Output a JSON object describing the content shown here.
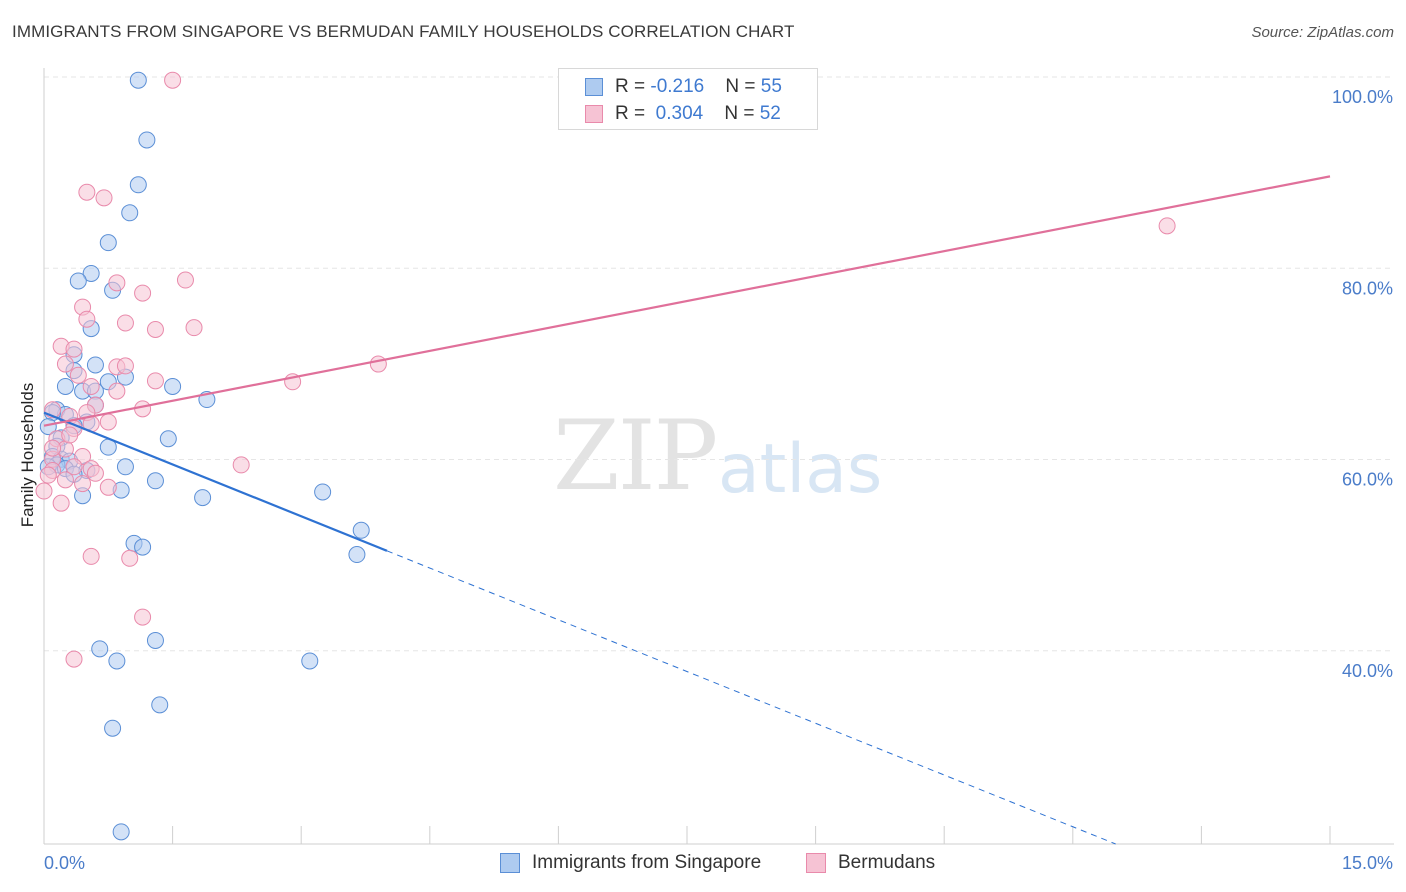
{
  "title": "IMMIGRANTS FROM SINGAPORE VS BERMUDAN FAMILY HOUSEHOLDS CORRELATION CHART",
  "source": "Source: ZipAtlas.com",
  "watermark": {
    "zip": "ZIP",
    "atlas": "atlas"
  },
  "legend": {
    "row1": {
      "r_label": "R = ",
      "r_value": "-0.216",
      "n_label": "N = ",
      "n_value": "55"
    },
    "row2": {
      "r_label": "R = ",
      "r_value": "0.304",
      "n_label": "N = ",
      "n_value": "52"
    }
  },
  "bottom_legend": {
    "series1": "Immigrants from Singapore",
    "series2": "Bermudans"
  },
  "colors": {
    "blue_fill": "#aecbf0",
    "blue_stroke": "#5b8fd6",
    "blue_line": "#2e72d2",
    "pink_fill": "#f6c3d4",
    "pink_stroke": "#e98aab",
    "pink_line": "#e0709a",
    "tick_text": "#4a7cc9",
    "grid": "#e6e6e6"
  },
  "chart_data": {
    "type": "scatter",
    "title": "IMMIGRANTS FROM SINGAPORE VS BERMUDAN FAMILY HOUSEHOLDS CORRELATION CHART",
    "xlabel": "",
    "ylabel": "Family Households",
    "xlim": [
      0,
      15
    ],
    "ylim": [
      20,
      100
    ],
    "x_tick_labels": [
      "0.0%",
      "15.0%"
    ],
    "y_ticks": [
      40,
      60,
      80,
      100
    ],
    "y_tick_labels": [
      "40.0%",
      "60.0%",
      "80.0%",
      "100.0%"
    ],
    "series": [
      {
        "name": "Immigrants from Singapore",
        "r": -0.216,
        "n": 55,
        "trend": {
          "x0": 0,
          "y0": 66.2,
          "x1": 4.0,
          "y1": 51.4,
          "dashed_to_x": 12.5,
          "dashed_to_y": 20
        },
        "points": [
          [
            1.1,
            101.8
          ],
          [
            1.2,
            95.4
          ],
          [
            1.1,
            90.6
          ],
          [
            1.0,
            87.6
          ],
          [
            0.75,
            84.4
          ],
          [
            0.55,
            81.1
          ],
          [
            0.4,
            80.3
          ],
          [
            0.8,
            79.3
          ],
          [
            0.55,
            75.2
          ],
          [
            0.35,
            72.4
          ],
          [
            0.6,
            71.3
          ],
          [
            0.35,
            70.7
          ],
          [
            0.95,
            70.0
          ],
          [
            0.75,
            69.5
          ],
          [
            0.25,
            69.0
          ],
          [
            0.45,
            68.5
          ],
          [
            1.5,
            69.0
          ],
          [
            0.6,
            68.5
          ],
          [
            1.9,
            67.6
          ],
          [
            0.6,
            67.0
          ],
          [
            0.15,
            66.5
          ],
          [
            0.25,
            66.0
          ],
          [
            0.1,
            66.2
          ],
          [
            0.5,
            65.2
          ],
          [
            0.05,
            64.7
          ],
          [
            0.35,
            64.8
          ],
          [
            0.2,
            63.5
          ],
          [
            0.15,
            62.6
          ],
          [
            1.45,
            63.4
          ],
          [
            0.1,
            61.5
          ],
          [
            0.2,
            61.2
          ],
          [
            0.3,
            61.0
          ],
          [
            0.15,
            60.6
          ],
          [
            0.05,
            60.4
          ],
          [
            0.25,
            60.2
          ],
          [
            0.5,
            60.0
          ],
          [
            0.35,
            59.6
          ],
          [
            0.95,
            60.4
          ],
          [
            0.75,
            62.5
          ],
          [
            1.3,
            58.9
          ],
          [
            0.9,
            57.9
          ],
          [
            0.45,
            57.3
          ],
          [
            1.85,
            57.1
          ],
          [
            3.25,
            57.7
          ],
          [
            3.7,
            53.6
          ],
          [
            1.05,
            52.2
          ],
          [
            1.15,
            51.8
          ],
          [
            3.65,
            51.0
          ],
          [
            0.65,
            40.9
          ],
          [
            0.85,
            39.6
          ],
          [
            1.3,
            41.8
          ],
          [
            3.1,
            39.6
          ],
          [
            1.35,
            34.9
          ],
          [
            0.8,
            32.4
          ],
          [
            0.9,
            21.3
          ]
        ]
      },
      {
        "name": "Bermudans",
        "r": 0.304,
        "n": 52,
        "trend": {
          "x0": 0,
          "y0": 64.8,
          "x1": 15.0,
          "y1": 91.5
        },
        "points": [
          [
            1.5,
            101.8
          ],
          [
            0.5,
            89.8
          ],
          [
            0.7,
            89.2
          ],
          [
            13.1,
            86.2
          ],
          [
            1.65,
            80.4
          ],
          [
            0.85,
            80.1
          ],
          [
            1.15,
            79.0
          ],
          [
            0.45,
            77.5
          ],
          [
            0.5,
            76.2
          ],
          [
            0.95,
            75.8
          ],
          [
            1.3,
            75.1
          ],
          [
            1.75,
            75.3
          ],
          [
            0.2,
            73.3
          ],
          [
            0.35,
            73.0
          ],
          [
            0.25,
            71.4
          ],
          [
            0.85,
            71.1
          ],
          [
            0.95,
            71.2
          ],
          [
            3.9,
            71.4
          ],
          [
            0.4,
            70.2
          ],
          [
            0.55,
            69.0
          ],
          [
            1.3,
            69.6
          ],
          [
            2.9,
            69.5
          ],
          [
            0.85,
            68.5
          ],
          [
            0.6,
            67.0
          ],
          [
            0.5,
            66.2
          ],
          [
            0.3,
            65.8
          ],
          [
            0.1,
            66.5
          ],
          [
            1.15,
            66.6
          ],
          [
            0.55,
            65.0
          ],
          [
            0.75,
            65.2
          ],
          [
            0.35,
            64.5
          ],
          [
            0.15,
            63.4
          ],
          [
            0.25,
            62.3
          ],
          [
            0.1,
            61.2
          ],
          [
            0.45,
            61.5
          ],
          [
            0.1,
            60.0
          ],
          [
            0.55,
            60.2
          ],
          [
            0.35,
            60.4
          ],
          [
            2.3,
            60.6
          ],
          [
            0.6,
            59.7
          ],
          [
            0.05,
            59.5
          ],
          [
            0.25,
            59.0
          ],
          [
            0.45,
            58.6
          ],
          [
            0.75,
            58.2
          ],
          [
            0.0,
            57.8
          ],
          [
            0.2,
            56.5
          ],
          [
            0.55,
            50.8
          ],
          [
            1.0,
            50.6
          ],
          [
            1.15,
            44.3
          ],
          [
            0.35,
            39.8
          ],
          [
            0.1,
            62.4
          ],
          [
            0.3,
            63.8
          ]
        ]
      }
    ]
  }
}
